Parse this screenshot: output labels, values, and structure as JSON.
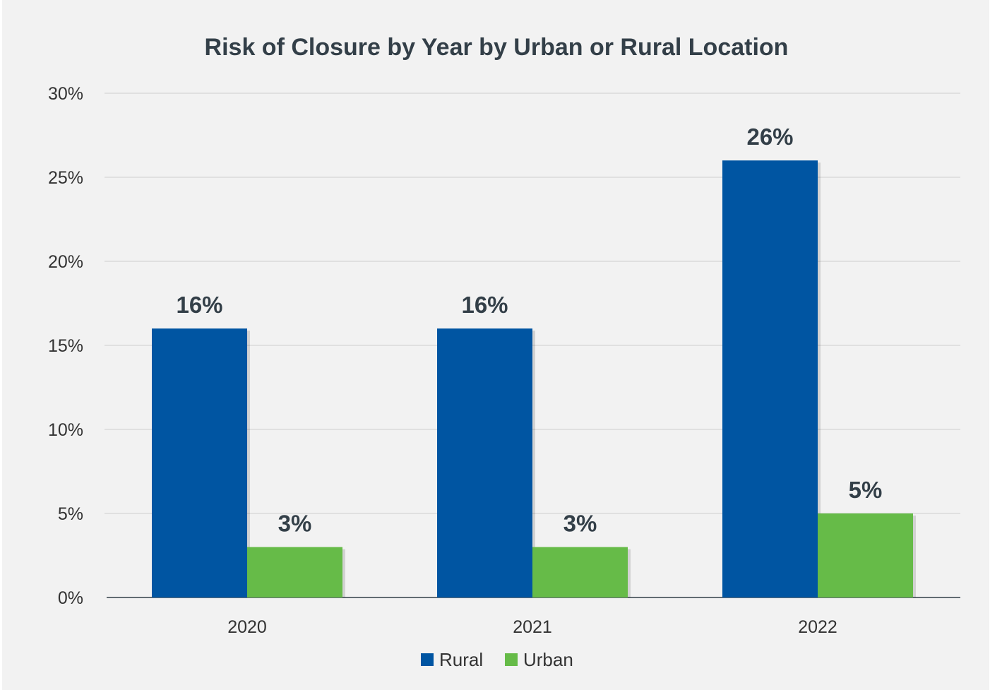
{
  "chart_data": {
    "type": "bar",
    "title": "Risk of Closure by Year by Urban or Rural Location",
    "categories": [
      "2020",
      "2021",
      "2022"
    ],
    "series": [
      {
        "name": "Rural",
        "values": [
          16,
          16,
          26
        ],
        "labels": [
          "16%",
          "16%",
          "26%"
        ],
        "color": "#0055a2"
      },
      {
        "name": "Urban",
        "values": [
          3,
          3,
          5
        ],
        "labels": [
          "3%",
          "3%",
          "5%"
        ],
        "color": "#66bb48"
      }
    ],
    "ylim": [
      0,
      30
    ],
    "yticks": [
      0,
      5,
      10,
      15,
      20,
      25,
      30
    ],
    "ytick_labels": [
      "0%",
      "5%",
      "10%",
      "15%",
      "20%",
      "25%",
      "30%"
    ],
    "xlabel": "",
    "ylabel": "",
    "grid": true,
    "legend": "bottom"
  },
  "colors": {
    "background": "#f2f2f2",
    "gridline": "#d9d9d9",
    "text": "#333f48"
  }
}
